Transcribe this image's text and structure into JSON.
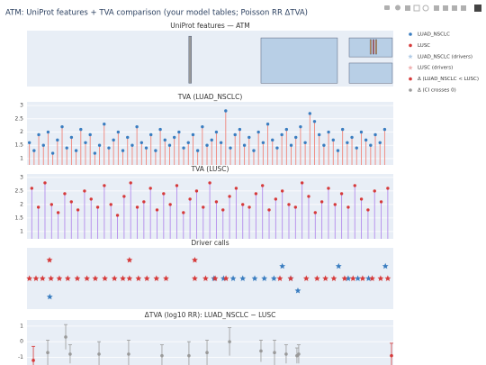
{
  "title": "ATM: UniProt features + TVA comparison (your model tables; Poisson RR ΔTVA)",
  "chart_data": [
    {
      "type": "rect",
      "title": "UniProt features — ATM",
      "xlim": [
        0,
        3056
      ],
      "ylim": [
        0,
        1
      ],
      "features": [
        {
          "x0": 1350,
          "x1": 1372,
          "y0": 0.06,
          "y1": 0.9,
          "color": "#9a9a9a"
        },
        {
          "x0": 1952,
          "x1": 2590,
          "y0": 0.06,
          "y1": 0.87,
          "color": "#b8cfe6"
        },
        {
          "x0": 2688,
          "x1": 3048,
          "y0": 0.53,
          "y1": 0.87,
          "color": "#b8cfe6"
        },
        {
          "x0": 2688,
          "x1": 3048,
          "y0": 0.06,
          "y1": 0.42,
          "color": "#b8cfe6"
        },
        {
          "x0": 2862,
          "x1": 2872,
          "y0": 0.58,
          "y1": 0.84,
          "color": "#f0a040"
        },
        {
          "x0": 2886,
          "x1": 2896,
          "y0": 0.58,
          "y1": 0.84,
          "color": "#e05050"
        },
        {
          "x0": 2908,
          "x1": 2918,
          "y0": 0.58,
          "y1": 0.84,
          "color": "#f0a040"
        }
      ]
    },
    {
      "type": "lollipop",
      "title": "TVA (LUAD_NSCLC)",
      "xlim": [
        0,
        3056
      ],
      "ylim": [
        0.76,
        3.14
      ],
      "yticks": [
        1,
        1.5,
        2,
        2.5,
        3
      ],
      "grid": true,
      "series": [
        {
          "name": "LUAD_NSCLC",
          "color": "#3a7dc0",
          "stem_color": "#f0857a",
          "x": [
            20,
            59,
            98,
            137,
            176,
            215,
            254,
            293,
            332,
            371,
            410,
            449,
            488,
            527,
            566,
            605,
            644,
            683,
            722,
            761,
            800,
            839,
            878,
            917,
            956,
            995,
            1034,
            1073,
            1112,
            1151,
            1190,
            1229,
            1268,
            1307,
            1346,
            1385,
            1424,
            1463,
            1502,
            1541,
            1580,
            1619,
            1658,
            1697,
            1736,
            1775,
            1814,
            1853,
            1892,
            1931,
            1970,
            2009,
            2048,
            2087,
            2126,
            2165,
            2204,
            2243,
            2282,
            2321,
            2360,
            2399,
            2438,
            2477,
            2516,
            2555,
            2594,
            2633,
            2672,
            2711,
            2750,
            2789,
            2828,
            2867,
            2906,
            2945,
            2984
          ],
          "values": [
            1.6,
            1.3,
            1.9,
            1.5,
            2.0,
            1.2,
            1.7,
            2.2,
            1.4,
            1.8,
            1.3,
            2.1,
            1.6,
            1.9,
            1.2,
            1.5,
            2.3,
            1.4,
            1.7,
            2.0,
            1.3,
            1.8,
            1.5,
            2.2,
            1.6,
            1.4,
            1.9,
            1.3,
            2.1,
            1.7,
            1.5,
            1.8,
            2.0,
            1.4,
            1.6,
            1.9,
            1.3,
            2.2,
            1.5,
            1.7,
            2.0,
            1.6,
            2.8,
            1.4,
            1.9,
            2.1,
            1.5,
            1.8,
            1.3,
            2.0,
            1.6,
            2.3,
            1.7,
            1.4,
            1.9,
            2.1,
            1.5,
            1.8,
            2.2,
            1.6,
            2.7,
            2.4,
            1.9,
            1.5,
            2.0,
            1.7,
            1.3,
            2.1,
            1.6,
            1.8,
            1.4,
            2.0,
            1.7,
            1.5,
            1.9,
            1.6,
            2.1
          ]
        }
      ]
    },
    {
      "type": "lollipop",
      "title": "TVA (LUSC)",
      "xlim": [
        0,
        3056
      ],
      "ylim": [
        0.73,
        3.13
      ],
      "yticks": [
        1,
        1.5,
        2,
        2.5,
        3
      ],
      "grid": true,
      "series": [
        {
          "name": "LUSC",
          "color": "#d63a3a",
          "stem_color": "#b48cec",
          "x": [
            40,
            95,
            150,
            205,
            260,
            315,
            370,
            425,
            480,
            535,
            590,
            645,
            700,
            755,
            810,
            865,
            920,
            975,
            1030,
            1085,
            1140,
            1195,
            1250,
            1305,
            1360,
            1415,
            1470,
            1525,
            1580,
            1635,
            1690,
            1745,
            1800,
            1855,
            1910,
            1965,
            2020,
            2075,
            2130,
            2185,
            2240,
            2295,
            2350,
            2405,
            2460,
            2515,
            2570,
            2625,
            2680,
            2735,
            2790,
            2845,
            2900,
            2955,
            3010
          ],
          "values": [
            2.6,
            1.9,
            2.8,
            2.0,
            1.7,
            2.4,
            2.1,
            1.8,
            2.5,
            2.2,
            1.9,
            2.7,
            2.0,
            1.6,
            2.3,
            2.8,
            1.9,
            2.1,
            2.6,
            1.8,
            2.4,
            2.0,
            2.7,
            1.7,
            2.2,
            2.5,
            1.9,
            2.8,
            2.1,
            1.8,
            2.3,
            2.6,
            2.0,
            1.9,
            2.4,
            2.7,
            1.8,
            2.2,
            2.5,
            2.0,
            1.9,
            2.8,
            2.3,
            1.7,
            2.1,
            2.6,
            2.0,
            2.4,
            1.9,
            2.7,
            2.2,
            1.8,
            2.5,
            2.1,
            2.6
          ]
        }
      ]
    },
    {
      "type": "scatter",
      "title": "Driver calls",
      "xlim": [
        0,
        3056
      ],
      "ylim": [
        -1,
        1
      ],
      "series": [
        {
          "name": "LUAD_NSCLC (drivers)",
          "color": "#3a7dc0",
          "marker": "star",
          "x": [
            190,
            1560,
            1640,
            1720,
            1800,
            1900,
            1980,
            2060,
            2130,
            2200,
            2260,
            2600,
            2680,
            2760,
            2850,
            2990
          ],
          "values": [
            -0.6,
            0,
            0,
            0,
            0,
            0,
            0,
            0,
            0.4,
            0,
            -0.4,
            0.4,
            0,
            0,
            0,
            0.4
          ]
        },
        {
          "name": "LUSC (drivers)",
          "color": "#d63a3a",
          "marker": "star",
          "x": [
            20,
            75,
            130,
            188,
            200,
            270,
            340,
            420,
            500,
            570,
            650,
            730,
            800,
            855,
            855,
            930,
            1000,
            1080,
            1160,
            1400,
            1400,
            1490,
            1570,
            1660,
            2110,
            2200,
            2330,
            2420,
            2490,
            2560,
            2650,
            2720,
            2800,
            2880,
            2950,
            3010
          ],
          "values": [
            0,
            0,
            0,
            0.6,
            0,
            0,
            0,
            0,
            0,
            0,
            0,
            0,
            0,
            0,
            0.6,
            0,
            0,
            0,
            0,
            0,
            0.6,
            0,
            0,
            0,
            0,
            0,
            0,
            0,
            0,
            0,
            0,
            0,
            0,
            0,
            0,
            0
          ]
        }
      ]
    },
    {
      "type": "errorbar",
      "title": "ΔTVA (log10 RR): LUAD_NSCLC − LUSC",
      "xlim": [
        0,
        3056
      ],
      "ylim": [
        -1.5,
        1.4
      ],
      "yticks": [
        -1,
        0,
        1
      ],
      "grid": true,
      "series": [
        {
          "name": "Δ (LUAD_NSCLC < LUSC)",
          "color": "#d63a3a",
          "x": [
            53,
            3041
          ],
          "values": [
            -1.2,
            -0.9
          ],
          "errors": [
            0.9,
            0.8
          ]
        },
        {
          "name": "Δ (CI crosses 0)",
          "color": "#9a9a9a",
          "x": [
            173,
            323,
            360,
            601,
            848,
            1126,
            1351,
            1502,
            1690,
            1952,
            2065,
            2162,
            2252,
            2267
          ],
          "values": [
            -0.7,
            0.3,
            -0.8,
            -0.8,
            -0.8,
            -0.9,
            -0.9,
            -0.7,
            0,
            -0.6,
            -0.7,
            -0.8,
            -0.9,
            -0.8
          ],
          "errors": [
            0.8,
            0.8,
            0.6,
            0.8,
            0.9,
            0.7,
            0.9,
            0.8,
            0.9,
            0.7,
            0.8,
            0.6,
            0.5,
            0.6
          ]
        }
      ]
    }
  ]
}
